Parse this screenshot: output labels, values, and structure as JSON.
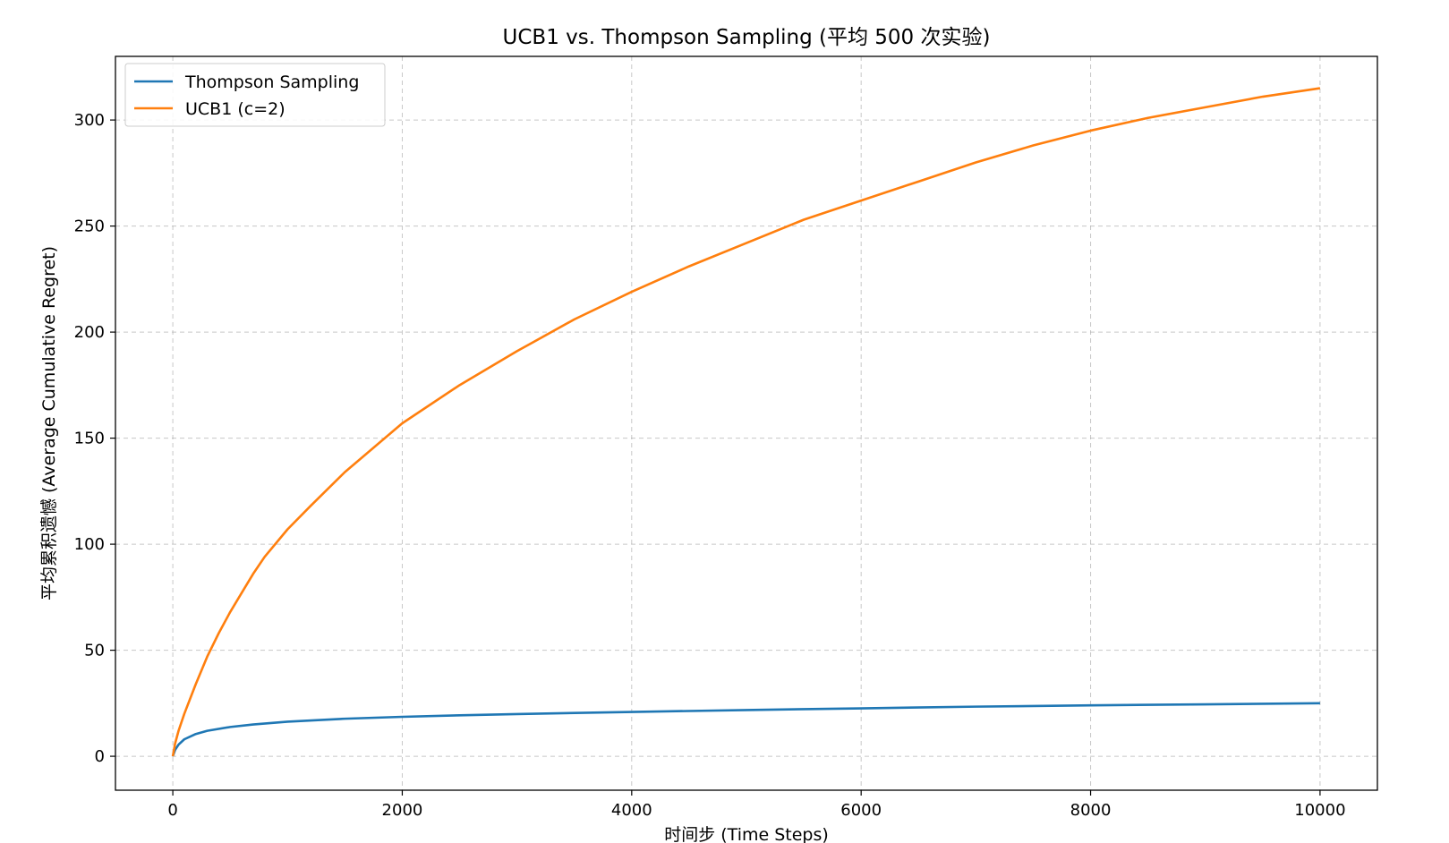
{
  "chart_data": {
    "type": "line",
    "title": "UCB1 vs. Thompson Sampling (平均 500 次实验)",
    "xlabel": "时间步 (Time Steps)",
    "ylabel": "平均累积遗憾 (Average Cumulative Regret)",
    "xlim": [
      -500,
      10500
    ],
    "ylim": [
      -16,
      330
    ],
    "xticks": [
      0,
      2000,
      4000,
      6000,
      8000,
      10000
    ],
    "yticks": [
      0,
      50,
      100,
      150,
      200,
      250,
      300
    ],
    "grid": true,
    "legend_position": "upper-left",
    "series": [
      {
        "name": "Thompson Sampling",
        "color": "#1f77b4",
        "x": [
          0,
          20,
          50,
          100,
          200,
          300,
          500,
          700,
          1000,
          1500,
          2000,
          2500,
          3000,
          4000,
          5000,
          6000,
          7000,
          8000,
          9000,
          10000
        ],
        "y": [
          0,
          3,
          5.5,
          8,
          10.5,
          12,
          13.8,
          15,
          16.3,
          17.7,
          18.6,
          19.3,
          19.9,
          20.9,
          21.8,
          22.6,
          23.4,
          24,
          24.5,
          25
        ]
      },
      {
        "name": "UCB1 (c=2)",
        "color": "#ff7f0e",
        "x": [
          0,
          20,
          50,
          100,
          200,
          300,
          400,
          500,
          600,
          700,
          800,
          1000,
          1200,
          1500,
          2000,
          2500,
          3000,
          3500,
          4000,
          4500,
          5000,
          5500,
          6000,
          6500,
          7000,
          7500,
          8000,
          8500,
          9000,
          9500,
          10000
        ],
        "y": [
          0,
          6,
          12,
          20,
          34,
          47,
          58,
          68,
          77,
          86,
          94,
          107,
          118,
          134,
          157,
          175,
          191,
          206,
          219,
          231,
          242,
          253,
          262,
          271,
          280,
          288,
          295,
          301,
          306,
          311,
          315
        ]
      }
    ]
  }
}
